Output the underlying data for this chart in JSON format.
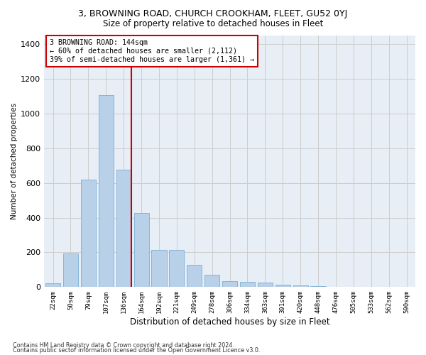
{
  "title": "3, BROWNING ROAD, CHURCH CROOKHAM, FLEET, GU52 0YJ",
  "subtitle": "Size of property relative to detached houses in Fleet",
  "xlabel": "Distribution of detached houses by size in Fleet",
  "ylabel": "Number of detached properties",
  "bar_labels": [
    "22sqm",
    "50sqm",
    "79sqm",
    "107sqm",
    "136sqm",
    "164sqm",
    "192sqm",
    "221sqm",
    "249sqm",
    "278sqm",
    "306sqm",
    "334sqm",
    "363sqm",
    "391sqm",
    "420sqm",
    "448sqm",
    "476sqm",
    "505sqm",
    "533sqm",
    "562sqm",
    "590sqm"
  ],
  "bar_values": [
    22,
    195,
    620,
    1105,
    675,
    425,
    215,
    215,
    130,
    70,
    35,
    30,
    25,
    15,
    10,
    5,
    3,
    2,
    1,
    0,
    0
  ],
  "bar_color": "#b8d0e8",
  "bar_edge_color": "#7aafd4",
  "vline_color": "#cc0000",
  "annotation_text": "3 BROWNING ROAD: 144sqm\n← 60% of detached houses are smaller (2,112)\n39% of semi-detached houses are larger (1,361) →",
  "annotation_box_facecolor": "#ffffff",
  "annotation_box_edgecolor": "#cc0000",
  "ylim": [
    0,
    1450
  ],
  "yticks": [
    0,
    200,
    400,
    600,
    800,
    1000,
    1200,
    1400
  ],
  "grid_color": "#cccccc",
  "bg_color": "#e8eef6",
  "footer_line1": "Contains HM Land Registry data © Crown copyright and database right 2024.",
  "footer_line2": "Contains public sector information licensed under the Open Government Licence v3.0."
}
